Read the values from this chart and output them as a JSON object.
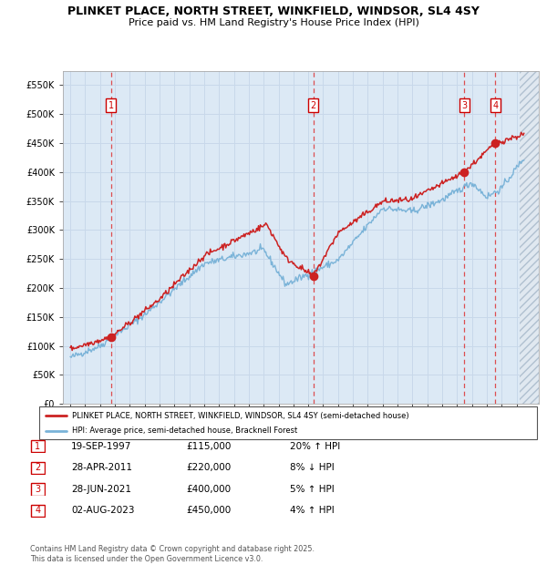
{
  "title_line1": "PLINKET PLACE, NORTH STREET, WINKFIELD, WINDSOR, SL4 4SY",
  "title_line2": "Price paid vs. HM Land Registry's House Price Index (HPI)",
  "background_color": "#ffffff",
  "plot_bg_color": "#dce9f5",
  "grid_color": "#c8d8ea",
  "hpi_color": "#7ab3d8",
  "price_color": "#cc2222",
  "dashed_line_color": "#dd3333",
  "legend_label_price": "PLINKET PLACE, NORTH STREET, WINKFIELD, WINDSOR, SL4 4SY (semi-detached house)",
  "legend_label_hpi": "HPI: Average price, semi-detached house, Bracknell Forest",
  "transactions": [
    {
      "num": 1,
      "date": "19-SEP-1997",
      "price": "£115,000",
      "pct": "20%",
      "dir": "↑",
      "year": 1997.72,
      "price_val": 115000
    },
    {
      "num": 2,
      "date": "28-APR-2011",
      "price": "£220,000",
      "pct": "8%",
      "dir": "↓",
      "year": 2011.33,
      "price_val": 220000
    },
    {
      "num": 3,
      "date": "28-JUN-2021",
      "price": "£400,000",
      "pct": "5%",
      "dir": "↑",
      "year": 2021.49,
      "price_val": 400000
    },
    {
      "num": 4,
      "date": "02-AUG-2023",
      "price": "£450,000",
      "pct": "4%",
      "dir": "↑",
      "year": 2023.58,
      "price_val": 450000
    }
  ],
  "ylim": [
    0,
    575000
  ],
  "xlim_start": 1994.5,
  "xlim_end": 2026.5,
  "yticks": [
    0,
    50000,
    100000,
    150000,
    200000,
    250000,
    300000,
    350000,
    400000,
    450000,
    500000,
    550000
  ],
  "ylabels": [
    "£0",
    "£50K",
    "£100K",
    "£150K",
    "£200K",
    "£250K",
    "£300K",
    "£350K",
    "£400K",
    "£450K",
    "£500K",
    "£550K"
  ],
  "footnote": "Contains HM Land Registry data © Crown copyright and database right 2025.\nThis data is licensed under the Open Government Licence v3.0."
}
